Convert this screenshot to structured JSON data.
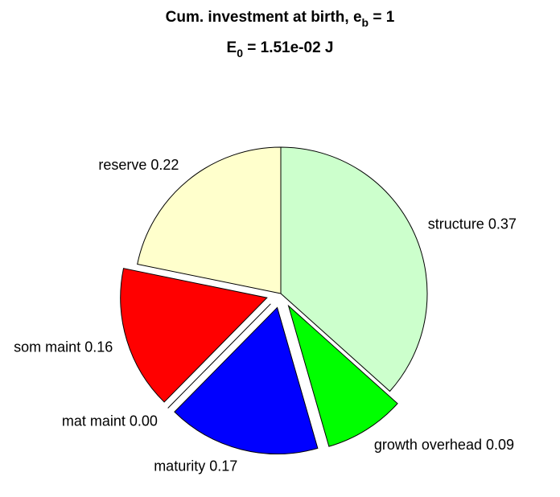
{
  "chart_data": {
    "type": "pie",
    "title_parts": [
      "Cum. investment at birth, e",
      "b",
      " = 1"
    ],
    "subtitle_parts": [
      "E",
      "0",
      " = 1.51e-02 J"
    ],
    "categories": [
      "structure",
      "growth overhead",
      "maturity",
      "mat maint",
      "som maint",
      "reserve"
    ],
    "values": [
      0.37,
      0.09,
      0.17,
      0.0,
      0.16,
      0.22
    ],
    "value_labels": [
      "0.37",
      "0.09",
      "0.17",
      "0.00",
      "0.16",
      "0.22"
    ],
    "colors": [
      "#ccffcc",
      "#00ff00",
      "#0000ff",
      "#ff00ff",
      "#ff0000",
      "#ffffcc"
    ],
    "explode": [
      0,
      1,
      1,
      1,
      1,
      0
    ]
  }
}
